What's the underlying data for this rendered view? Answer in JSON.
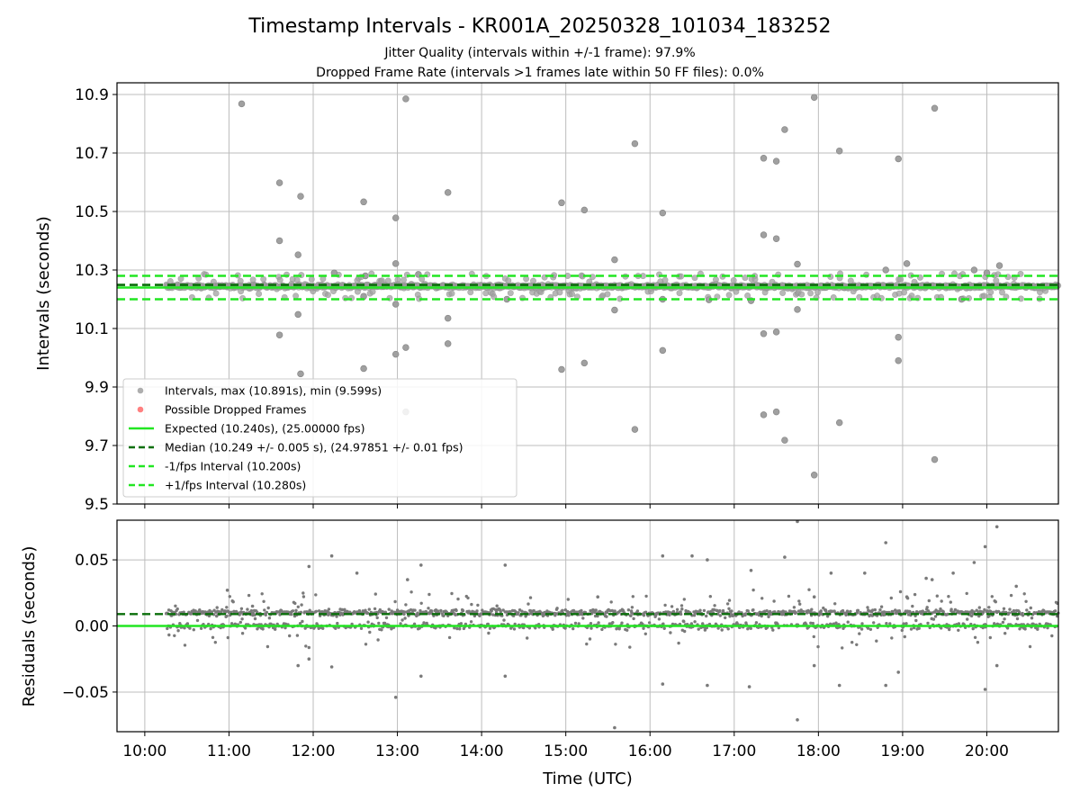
{
  "chart_data": [
    {
      "type": "scatter",
      "title": "Timestamp Intervals - KR001A_20250328_101034_183252",
      "subtitle_lines": [
        "Jitter Quality (intervals within +/-1 frame): 97.9%",
        "Dropped Frame Rate (intervals >1 frames late within 50 FF files): 0.0%"
      ],
      "ylabel": "Intervals (seconds)",
      "xlim": [
        9.67,
        20.85
      ],
      "ylim": [
        9.5,
        10.94
      ],
      "yticks": [
        9.5,
        9.7,
        9.9,
        10.1,
        10.3,
        10.5,
        10.7,
        10.9
      ],
      "ytick_labels": [
        "9.5",
        "9.7",
        "9.9",
        "10.1",
        "10.3",
        "10.5",
        "10.7",
        "10.9"
      ],
      "grid": true,
      "legend_position": "lower-left",
      "legend": [
        {
          "label": "Intervals, max (10.891s), min (9.599s)",
          "kind": "marker",
          "color": "#a0a0a0"
        },
        {
          "label": "Possible Dropped Frames",
          "kind": "marker",
          "color": "#ff6a6a"
        },
        {
          "label": "Expected (10.240s), (25.00000 fps)",
          "kind": "solid",
          "color": "#22e622"
        },
        {
          "label": "Median (10.249 +/- 0.005 s), (24.97851 +/- 0.01 fps)",
          "kind": "dashed",
          "color": "#0a6e0a"
        },
        {
          "label": "-1/fps Interval (10.200s)",
          "kind": "dashed",
          "color": "#22e622"
        },
        {
          "label": "+1/fps Interval (10.280s)",
          "kind": "dashed",
          "color": "#22e622"
        }
      ],
      "reference_lines": {
        "expected": 10.24,
        "median": 10.249,
        "minus_one_frame": 10.2,
        "plus_one_frame": 10.28
      },
      "series_band": {
        "name": "Intervals",
        "x_start": 10.25,
        "x_end": 20.85,
        "y_center": 10.244,
        "spread": 0.018,
        "color": "#a0a0a0"
      },
      "outliers": [
        [
          11.15,
          10.868
        ],
        [
          11.6,
          10.598
        ],
        [
          11.6,
          10.4
        ],
        [
          11.6,
          10.078
        ],
        [
          11.85,
          10.552
        ],
        [
          11.82,
          10.352
        ],
        [
          11.82,
          10.148
        ],
        [
          11.85,
          9.945
        ],
        [
          12.25,
          10.29
        ],
        [
          12.6,
          10.533
        ],
        [
          12.6,
          9.963
        ],
        [
          12.62,
          10.28
        ],
        [
          12.6,
          10.21
        ],
        [
          12.98,
          10.478
        ],
        [
          12.98,
          10.322
        ],
        [
          12.98,
          10.183
        ],
        [
          12.98,
          10.012
        ],
        [
          13.1,
          10.885
        ],
        [
          13.1,
          10.035
        ],
        [
          13.1,
          9.815
        ],
        [
          13.25,
          10.285
        ],
        [
          13.6,
          10.565
        ],
        [
          13.6,
          10.135
        ],
        [
          13.6,
          10.048
        ],
        [
          14.3,
          10.2
        ],
        [
          14.95,
          10.53
        ],
        [
          14.95,
          9.96
        ],
        [
          15.22,
          10.505
        ],
        [
          15.22,
          9.982
        ],
        [
          15.58,
          10.335
        ],
        [
          15.58,
          10.163
        ],
        [
          15.82,
          10.732
        ],
        [
          15.82,
          9.755
        ],
        [
          16.15,
          10.495
        ],
        [
          16.15,
          10.025
        ],
        [
          16.15,
          10.2
        ],
        [
          16.7,
          10.198
        ],
        [
          17.2,
          10.195
        ],
        [
          17.35,
          10.682
        ],
        [
          17.35,
          10.42
        ],
        [
          17.35,
          10.082
        ],
        [
          17.35,
          9.805
        ],
        [
          17.5,
          10.672
        ],
        [
          17.5,
          10.407
        ],
        [
          17.5,
          10.088
        ],
        [
          17.5,
          9.815
        ],
        [
          17.6,
          10.78
        ],
        [
          17.6,
          9.718
        ],
        [
          17.75,
          10.32
        ],
        [
          17.75,
          10.165
        ],
        [
          17.95,
          10.89
        ],
        [
          17.95,
          9.599
        ],
        [
          18.25,
          10.707
        ],
        [
          18.25,
          9.778
        ],
        [
          18.8,
          10.3
        ],
        [
          18.95,
          10.68
        ],
        [
          18.95,
          10.07
        ],
        [
          18.95,
          9.99
        ],
        [
          19.05,
          10.322
        ],
        [
          19.38,
          10.853
        ],
        [
          19.38,
          9.652
        ],
        [
          19.7,
          10.2
        ],
        [
          19.85,
          10.3
        ],
        [
          20.0,
          10.29
        ],
        [
          20.15,
          10.315
        ]
      ]
    },
    {
      "type": "scatter",
      "xlabel": "Time (UTC)",
      "ylabel": "Residuals (seconds)",
      "xlim": [
        9.67,
        20.85
      ],
      "ylim": [
        -0.08,
        0.08
      ],
      "yticks": [
        -0.05,
        0.0,
        0.05
      ],
      "ytick_labels": [
        "−0.05",
        "0.00",
        "0.05"
      ],
      "xticks": [
        10,
        11,
        12,
        13,
        14,
        15,
        16,
        17,
        18,
        19,
        20
      ],
      "xtick_labels": [
        "10:00",
        "11:00",
        "12:00",
        "13:00",
        "14:00",
        "15:00",
        "16:00",
        "17:00",
        "18:00",
        "19:00",
        "20:00"
      ],
      "grid": true,
      "zero_line": {
        "y": 0.0,
        "color": "#22e622"
      },
      "median_line": {
        "y": 0.009,
        "color": "#0a6e0a"
      },
      "series_band": {
        "name": "Residuals",
        "x_start": 10.25,
        "x_end": 20.85,
        "upper_center": 0.01,
        "lower_center": 0.0,
        "color": "#7a7a7a"
      },
      "outliers": [
        [
          10.98,
          0.027
        ],
        [
          11.28,
          0.015
        ],
        [
          11.82,
          -0.03
        ],
        [
          11.95,
          0.045
        ],
        [
          11.95,
          -0.025
        ],
        [
          12.22,
          0.053
        ],
        [
          12.22,
          -0.031
        ],
        [
          12.52,
          0.04
        ],
        [
          12.98,
          -0.054
        ],
        [
          13.12,
          0.035
        ],
        [
          13.28,
          0.046
        ],
        [
          13.28,
          -0.038
        ],
        [
          14.28,
          0.046
        ],
        [
          14.28,
          -0.038
        ],
        [
          15.38,
          0.022
        ],
        [
          15.58,
          -0.077
        ],
        [
          16.15,
          0.053
        ],
        [
          16.15,
          -0.044
        ],
        [
          16.5,
          0.053
        ],
        [
          16.68,
          0.05
        ],
        [
          16.68,
          -0.045
        ],
        [
          17.18,
          -0.046
        ],
        [
          17.2,
          0.042
        ],
        [
          17.6,
          0.052
        ],
        [
          17.75,
          0.079
        ],
        [
          17.75,
          -0.071
        ],
        [
          17.95,
          0.022
        ],
        [
          17.95,
          -0.03
        ],
        [
          18.15,
          0.04
        ],
        [
          18.25,
          -0.045
        ],
        [
          18.55,
          0.04
        ],
        [
          18.8,
          0.063
        ],
        [
          18.8,
          -0.045
        ],
        [
          18.95,
          -0.035
        ],
        [
          19.05,
          0.022
        ],
        [
          19.28,
          0.036
        ],
        [
          19.35,
          0.035
        ],
        [
          19.6,
          0.04
        ],
        [
          19.85,
          0.048
        ],
        [
          19.98,
          0.06
        ],
        [
          19.98,
          -0.048
        ],
        [
          20.12,
          0.075
        ],
        [
          20.12,
          -0.03
        ],
        [
          20.35,
          0.03
        ]
      ]
    }
  ]
}
